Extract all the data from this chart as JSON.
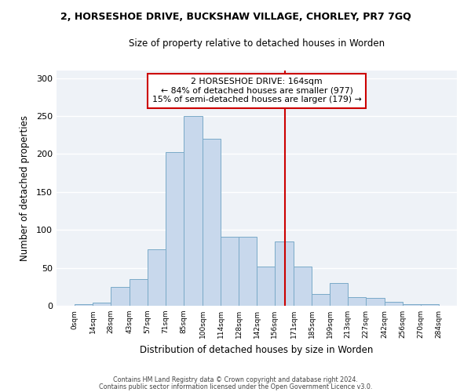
{
  "title": "2, HORSESHOE DRIVE, BUCKSHAW VILLAGE, CHORLEY, PR7 7GQ",
  "subtitle": "Size of property relative to detached houses in Worden",
  "xlabel": "Distribution of detached houses by size in Worden",
  "ylabel": "Number of detached properties",
  "bar_color": "#c8d8ec",
  "bar_edgecolor": "#7aaac8",
  "bin_edges": [
    0,
    14,
    28,
    43,
    57,
    71,
    85,
    100,
    114,
    128,
    142,
    156,
    171,
    185,
    199,
    213,
    227,
    242,
    256,
    270,
    284
  ],
  "bar_heights": [
    2,
    4,
    25,
    35,
    74,
    203,
    250,
    220,
    91,
    91,
    52,
    85,
    52,
    15,
    30,
    11,
    10,
    5,
    2,
    2
  ],
  "tick_labels": [
    "0sqm",
    "14sqm",
    "28sqm",
    "43sqm",
    "57sqm",
    "71sqm",
    "85sqm",
    "100sqm",
    "114sqm",
    "128sqm",
    "142sqm",
    "156sqm",
    "171sqm",
    "185sqm",
    "199sqm",
    "213sqm",
    "227sqm",
    "242sqm",
    "256sqm",
    "270sqm",
    "284sqm"
  ],
  "vline_x": 164,
  "vline_color": "#cc0000",
  "annotation_title": "2 HORSESHOE DRIVE: 164sqm",
  "annotation_line1": "← 84% of detached houses are smaller (977)",
  "annotation_line2": "15% of semi-detached houses are larger (179) →",
  "annotation_box_color": "#cc0000",
  "ylim": [
    0,
    310
  ],
  "yticks": [
    0,
    50,
    100,
    150,
    200,
    250,
    300
  ],
  "footer1": "Contains HM Land Registry data © Crown copyright and database right 2024.",
  "footer2": "Contains public sector information licensed under the Open Government Licence v3.0.",
  "bg_color": "#ffffff",
  "plot_bg_color": "#eef2f7"
}
